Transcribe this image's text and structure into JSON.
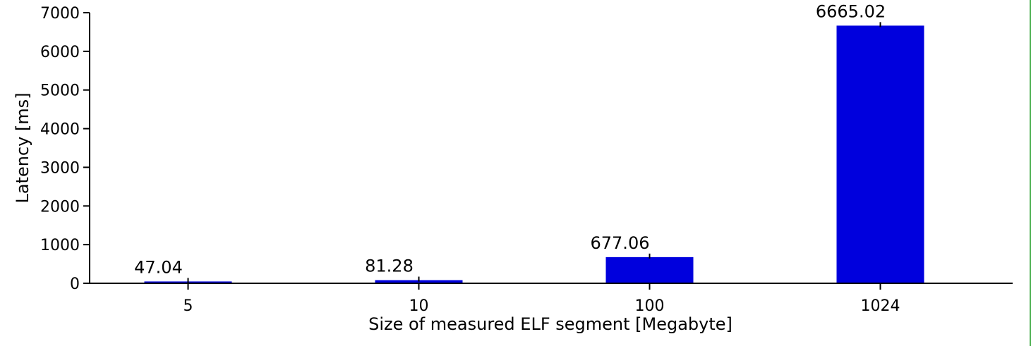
{
  "chart_data": {
    "type": "bar",
    "title": "",
    "xlabel": "Size of measured ELF segment [Megabyte]",
    "ylabel": "Latency [ms]",
    "categories": [
      "5",
      "10",
      "100",
      "1024"
    ],
    "values": [
      47.04,
      81.28,
      677.06,
      6665.02
    ],
    "value_labels": [
      "47.04",
      "81.28",
      "677.06",
      "6665.02"
    ],
    "ylim": [
      0,
      7000
    ],
    "yticks": [
      0,
      1000,
      2000,
      3000,
      4000,
      5000,
      6000,
      7000
    ],
    "ytick_labels": [
      "0",
      "1000",
      "2000",
      "3000",
      "4000",
      "5000",
      "6000",
      "7000"
    ],
    "grid": false,
    "legend": "none",
    "bar_color": "#0000dd",
    "error_bar_color": "#000000"
  }
}
